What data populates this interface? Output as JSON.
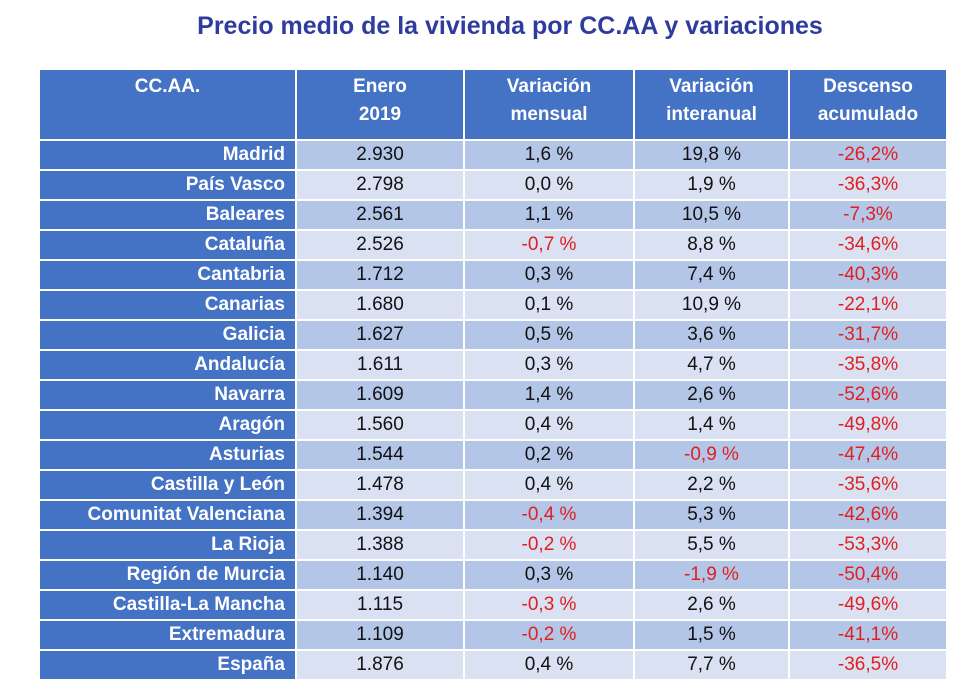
{
  "title": "Precio medio de la vivienda por CC.AA y variaciones",
  "colors": {
    "header": "#4472C4",
    "row_odd": "#B4C6E7",
    "row_even": "#D9E1F2",
    "negative": "#E02020",
    "title": "#2F3C9E"
  },
  "chart_data": {
    "type": "table",
    "title": "Precio medio de la vivienda por CC.AA y variaciones",
    "columns": [
      [
        "CC.AA."
      ],
      [
        "Enero",
        "2019"
      ],
      [
        "Variación",
        "mensual"
      ],
      [
        "Variación",
        "interanual"
      ],
      [
        "Descenso",
        "acumulado"
      ]
    ],
    "rows": [
      [
        "Madrid",
        "2.930",
        "1,6 %",
        "19,8 %",
        "-26,2%"
      ],
      [
        "País Vasco",
        "2.798",
        "0,0 %",
        "1,9 %",
        "-36,3%"
      ],
      [
        "Baleares",
        "2.561",
        "1,1 %",
        "10,5 %",
        "-7,3%"
      ],
      [
        "Cataluña",
        "2.526",
        "-0,7 %",
        "8,8 %",
        "-34,6%"
      ],
      [
        "Cantabria",
        "1.712",
        "0,3 %",
        "7,4 %",
        "-40,3%"
      ],
      [
        "Canarias",
        "1.680",
        "0,1 %",
        "10,9 %",
        "-22,1%"
      ],
      [
        "Galicia",
        "1.627",
        "0,5 %",
        "3,6 %",
        "-31,7%"
      ],
      [
        "Andalucía",
        "1.611",
        "0,3 %",
        "4,7 %",
        "-35,8%"
      ],
      [
        "Navarra",
        "1.609",
        "1,4 %",
        "2,6 %",
        "-52,6%"
      ],
      [
        "Aragón",
        "1.560",
        "0,4 %",
        "1,4 %",
        "-49,8%"
      ],
      [
        "Asturias",
        "1.544",
        "0,2 %",
        "-0,9 %",
        "-47,4%"
      ],
      [
        "Castilla y León",
        "1.478",
        "0,4 %",
        "2,2 %",
        "-35,6%"
      ],
      [
        "Comunitat Valenciana",
        "1.394",
        "-0,4 %",
        "5,3 %",
        "-42,6%"
      ],
      [
        "La Rioja",
        "1.388",
        "-0,2 %",
        "5,5 %",
        "-53,3%"
      ],
      [
        "Región de Murcia",
        "1.140",
        "0,3 %",
        "-1,9 %",
        "-50,4%"
      ],
      [
        "Castilla-La Mancha",
        "1.115",
        "-0,3 %",
        "2,6 %",
        "-49,6%"
      ],
      [
        "Extremadura",
        "1.109",
        "-0,2 %",
        "1,5 %",
        "-41,1%"
      ],
      [
        "España",
        "1.876",
        "0,4 %",
        "7,7 %",
        "-36,5%"
      ]
    ]
  }
}
